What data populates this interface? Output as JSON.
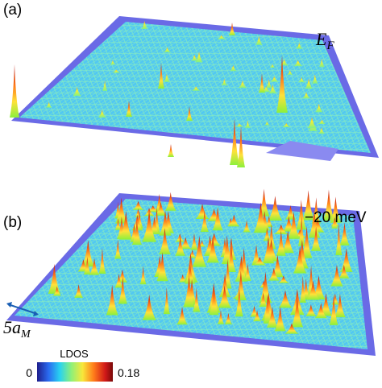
{
  "panels": [
    {
      "label": "(a)",
      "annotation_main": "E",
      "annotation_sub": "F"
    },
    {
      "label": "(b)",
      "annotation": "−20 meV",
      "scale_label_main": "5a",
      "scale_label_sub": "M"
    }
  ],
  "colorbar": {
    "title": "LDOS",
    "min": 0,
    "max": 0.18
  }
}
